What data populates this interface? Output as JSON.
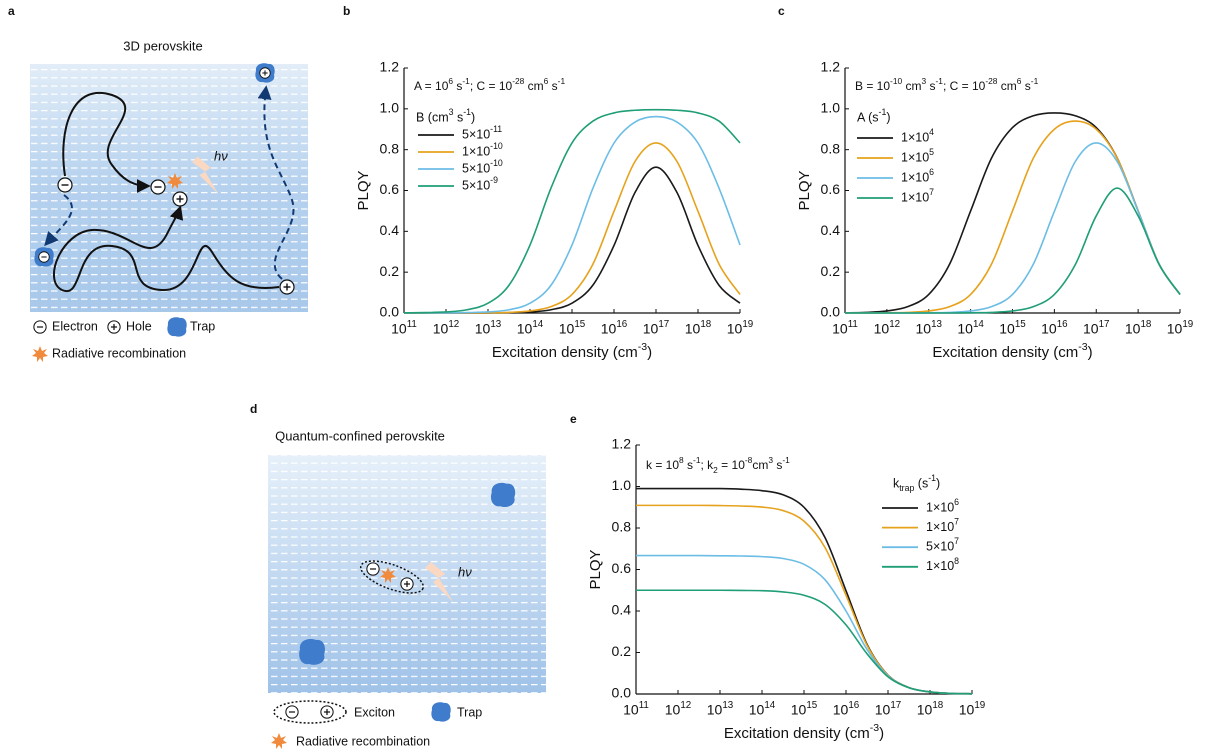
{
  "panels": {
    "a": {
      "label": "a",
      "title": "3D perovskite",
      "photon": "hν",
      "legend": {
        "electron": "Electron",
        "hole": "Hole",
        "trap": "Trap",
        "radiative": "Radiative recombination"
      }
    },
    "d": {
      "label": "d",
      "title": "Quantum-confined perovskite",
      "photon": "hν",
      "legend": {
        "exciton": "Exciton",
        "trap": "Trap",
        "radiative": "Radiative recombination"
      }
    }
  },
  "chart_data": [
    {
      "type": "line",
      "panel_label": "b",
      "annotation": "A = 10^{6} s^{-1}; C = 10^{-28} cm^{6} s^{-1}",
      "legend_title": "B (cm^{3} s^{-1})",
      "xlabel": "Excitation density (cm^{-3})",
      "ylabel": "PLQY",
      "xscale": "log",
      "xlim": [
        100000000000.0,
        1e+19
      ],
      "xticks": [
        {
          "value": 100000000000.0,
          "label": "10^{11}"
        },
        {
          "value": 1000000000000.0,
          "label": "10^{12}"
        },
        {
          "value": 10000000000000.0,
          "label": "10^{13}"
        },
        {
          "value": 100000000000000.0,
          "label": "10^{14}"
        },
        {
          "value": 1000000000000000.0,
          "label": "10^{15}"
        },
        {
          "value": 1e+16,
          "label": "10^{16}"
        },
        {
          "value": 1e+17,
          "label": "10^{17}"
        },
        {
          "value": 1e+18,
          "label": "10^{18}"
        },
        {
          "value": 1e+19,
          "label": "10^{19}"
        }
      ],
      "ylim": [
        0,
        1.2
      ],
      "yticks": [
        {
          "value": 0,
          "label": "0.0"
        },
        {
          "value": 0.2,
          "label": "0.2"
        },
        {
          "value": 0.4,
          "label": "0.4"
        },
        {
          "value": 0.6,
          "label": "0.6"
        },
        {
          "value": 0.8,
          "label": "0.8"
        },
        {
          "value": 1,
          "label": "1.0"
        },
        {
          "value": 1.2,
          "label": "1.2"
        }
      ],
      "x": [
        100000000000.0,
        316000000000.0,
        1000000000000.0,
        3160000000000.0,
        10000000000000.0,
        31600000000000.0,
        100000000000000.0,
        316000000000000.0,
        1000000000000000.0,
        3160000000000000.0,
        1e+16,
        3.16e+16,
        1e+17,
        3.16e+17,
        1e+18,
        3.16e+18,
        1e+19
      ],
      "series": [
        {
          "name": "5×10^{-11}",
          "color": "#1a1a1a",
          "values": [
            0,
            0,
            0,
            0,
            0.0005,
            0.0016,
            0.005,
            0.016,
            0.048,
            0.137,
            0.331,
            0.59,
            0.714,
            0.59,
            0.331,
            0.136,
            0.048
          ]
        },
        {
          "name": "1×10^{-10}",
          "color": "#e6a21c",
          "values": [
            0,
            0,
            0,
            0,
            0.001,
            0.003,
            0.01,
            0.031,
            0.091,
            0.24,
            0.498,
            0.742,
            0.833,
            0.742,
            0.498,
            0.24,
            0.091
          ]
        },
        {
          "name": "5×10^{-10}",
          "color": "#6cbde6",
          "values": [
            0,
            0,
            0.0005,
            0.002,
            0.005,
            0.016,
            0.048,
            0.136,
            0.333,
            0.612,
            0.832,
            0.935,
            0.962,
            0.935,
            0.832,
            0.612,
            0.333
          ]
        },
        {
          "name": "5×10^{-9}",
          "color": "#1f9e77",
          "values": [
            0.0005,
            0.002,
            0.005,
            0.016,
            0.048,
            0.136,
            0.333,
            0.612,
            0.833,
            0.94,
            0.98,
            0.993,
            0.996,
            0.993,
            0.98,
            0.94,
            0.833
          ]
        }
      ]
    },
    {
      "type": "line",
      "panel_label": "c",
      "annotation": "B = 10^{-10} cm^{3} s^{-1}; C = 10^{-28} cm^{6} s^{-1}",
      "legend_title": "A (s^{-1})",
      "xlabel": "Excitation density (cm^{-3})",
      "ylabel": "PLQY",
      "xscale": "log",
      "xlim": [
        100000000000.0,
        1e+19
      ],
      "xticks": [
        {
          "value": 100000000000.0,
          "label": "10^{11}"
        },
        {
          "value": 1000000000000.0,
          "label": "10^{12}"
        },
        {
          "value": 10000000000000.0,
          "label": "10^{13}"
        },
        {
          "value": 100000000000000.0,
          "label": "10^{14}"
        },
        {
          "value": 1000000000000000.0,
          "label": "10^{15}"
        },
        {
          "value": 1e+16,
          "label": "10^{16}"
        },
        {
          "value": 1e+17,
          "label": "10^{17}"
        },
        {
          "value": 1e+18,
          "label": "10^{18}"
        },
        {
          "value": 1e+19,
          "label": "10^{19}"
        }
      ],
      "ylim": [
        0,
        1.2
      ],
      "yticks": [
        {
          "value": 0,
          "label": "0.0"
        },
        {
          "value": 0.2,
          "label": "0.2"
        },
        {
          "value": 0.4,
          "label": "0.4"
        },
        {
          "value": 0.6,
          "label": "0.6"
        },
        {
          "value": 0.8,
          "label": "0.8"
        },
        {
          "value": 1,
          "label": "1.0"
        },
        {
          "value": 1.2,
          "label": "1.2"
        }
      ],
      "x": [
        100000000000.0,
        316000000000.0,
        1000000000000.0,
        3160000000000.0,
        10000000000000.0,
        31600000000000.0,
        100000000000000.0,
        316000000000000.0,
        1000000000000000.0,
        3160000000000000.0,
        1e+16,
        3.16e+16,
        1e+17,
        3.16e+17,
        1e+18,
        3.16e+18,
        1e+19
      ],
      "series": [
        {
          "name": "1×10^{4}",
          "color": "#1a1a1a",
          "values": [
            0.001,
            0.003,
            0.01,
            0.031,
            0.091,
            0.24,
            0.5,
            0.759,
            0.908,
            0.966,
            0.98,
            0.966,
            0.908,
            0.759,
            0.5,
            0.24,
            0.091
          ]
        },
        {
          "name": "1×10^{5}",
          "color": "#e6a21c",
          "values": [
            0,
            0,
            0.001,
            0.003,
            0.01,
            0.031,
            0.091,
            0.24,
            0.5,
            0.759,
            0.9,
            0.94,
            0.9,
            0.758,
            0.5,
            0.24,
            0.091
          ]
        },
        {
          "name": "1×10^{6}",
          "color": "#6cbde6",
          "values": [
            0,
            0,
            0,
            0,
            0.001,
            0.003,
            0.01,
            0.031,
            0.091,
            0.24,
            0.498,
            0.742,
            0.833,
            0.742,
            0.498,
            0.24,
            0.091
          ]
        },
        {
          "name": "1×10^{7}",
          "color": "#1f9e77",
          "values": [
            0,
            0,
            0,
            0,
            0,
            0,
            0.001,
            0.003,
            0.01,
            0.031,
            0.091,
            0.237,
            0.476,
            0.612,
            0.476,
            0.238,
            0.091
          ]
        }
      ]
    },
    {
      "type": "line",
      "panel_label": "e",
      "annotation": "k = 10^{8} s^{-1}; k_{2} = 10^{-8}cm^{3} s^{-1}",
      "legend_title": "k_{trap} (s^{-1})",
      "xlabel": "Excitation density (cm^{-3})",
      "ylabel": "PLQY",
      "xscale": "log",
      "xlim": [
        100000000000.0,
        1e+19
      ],
      "xticks": [
        {
          "value": 100000000000.0,
          "label": "10^{11}"
        },
        {
          "value": 1000000000000.0,
          "label": "10^{12}"
        },
        {
          "value": 10000000000000.0,
          "label": "10^{13}"
        },
        {
          "value": 100000000000000.0,
          "label": "10^{14}"
        },
        {
          "value": 1000000000000000.0,
          "label": "10^{15}"
        },
        {
          "value": 1e+16,
          "label": "10^{16}"
        },
        {
          "value": 1e+17,
          "label": "10^{17}"
        },
        {
          "value": 1e+18,
          "label": "10^{18}"
        },
        {
          "value": 1e+19,
          "label": "10^{19}"
        }
      ],
      "ylim": [
        0,
        1.2
      ],
      "yticks": [
        {
          "value": 0,
          "label": "0.0"
        },
        {
          "value": 0.2,
          "label": "0.2"
        },
        {
          "value": 0.4,
          "label": "0.4"
        },
        {
          "value": 0.6,
          "label": "0.6"
        },
        {
          "value": 0.8,
          "label": "0.8"
        },
        {
          "value": 1,
          "label": "1.0"
        },
        {
          "value": 1.2,
          "label": "1.2"
        }
      ],
      "x": [
        100000000000.0,
        316000000000.0,
        1000000000000.0,
        3160000000000.0,
        10000000000000.0,
        31600000000000.0,
        100000000000000.0,
        316000000000000.0,
        1000000000000000.0,
        3160000000000000.0,
        1e+16,
        3.16e+16,
        1e+17,
        3.16e+17,
        1e+18,
        3.16e+18,
        1e+19
      ],
      "series": [
        {
          "name": "1×10^{6}",
          "color": "#1a1a1a",
          "values": [
            0.99,
            0.99,
            0.99,
            0.99,
            0.99,
            0.987,
            0.98,
            0.96,
            0.9,
            0.754,
            0.498,
            0.24,
            0.091,
            0.031,
            0.01,
            0.003,
            0.001
          ]
        },
        {
          "name": "1×10^{7}",
          "color": "#e6a21c",
          "values": [
            0.909,
            0.909,
            0.909,
            0.909,
            0.908,
            0.906,
            0.901,
            0.884,
            0.833,
            0.706,
            0.476,
            0.235,
            0.09,
            0.031,
            0.01,
            0.003,
            0.001
          ]
        },
        {
          "name": "5×10^{7}",
          "color": "#6cbde6",
          "values": [
            0.667,
            0.667,
            0.667,
            0.667,
            0.666,
            0.665,
            0.662,
            0.653,
            0.625,
            0.551,
            0.4,
            0.215,
            0.087,
            0.03,
            0.01,
            0.003,
            0.001
          ]
        },
        {
          "name": "1×10^{8}",
          "color": "#1f9e77",
          "values": [
            0.5,
            0.5,
            0.5,
            0.5,
            0.5,
            0.499,
            0.498,
            0.492,
            0.476,
            0.432,
            0.333,
            0.194,
            0.083,
            0.03,
            0.01,
            0.003,
            0.001
          ]
        }
      ]
    }
  ]
}
